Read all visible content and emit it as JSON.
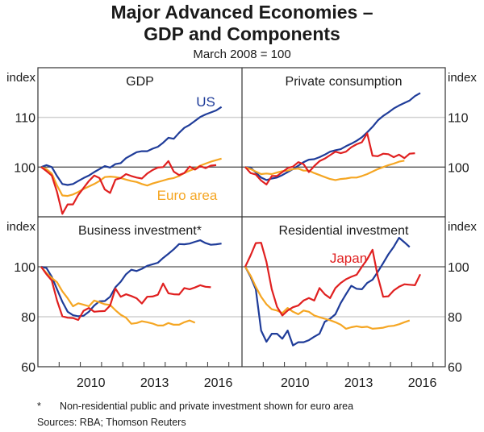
{
  "title_line1": "Major Advanced Economies –",
  "title_line2": "GDP and Components",
  "subtitle": "March 2008 = 100",
  "footnote_marker": "*",
  "footnote_text": "Non-residential public and private investment shown for euro area",
  "sources": "Sources:  RBA; Thomson Reuters",
  "colors": {
    "us": "#1f3c99",
    "euro": "#f5a623",
    "japan": "#e02020",
    "grid": "#d0d0d0",
    "axis": "#333333"
  },
  "chart_data": [
    {
      "type": "line",
      "title": "GDP",
      "ylabel": "index",
      "ylim": [
        90,
        120
      ],
      "yticks": [
        110,
        100
      ],
      "x_start": "2008Q1",
      "x_step": "quarter",
      "xticks": [
        "2010",
        "2013",
        "2016"
      ],
      "annotations": [
        {
          "text": "US",
          "series": "US"
        },
        {
          "text": "Euro area",
          "series": "Euro area"
        }
      ],
      "series": [
        {
          "name": "US",
          "color_key": "us",
          "values": [
            100,
            100.4,
            100.0,
            98.2,
            96.6,
            96.4,
            96.6,
            97.2,
            97.8,
            98.3,
            99.0,
            99.6,
            100.2,
            99.9,
            100.6,
            100.8,
            101.8,
            102.4,
            103.0,
            103.2,
            103.2,
            103.7,
            104.1,
            104.9,
            105.9,
            105.7,
            106.9,
            107.9,
            108.5,
            109.3,
            110.1,
            110.6,
            111.0,
            111.4,
            112.1
          ]
        },
        {
          "name": "Euro area",
          "color_key": "euro",
          "values": [
            100,
            99.6,
            98.7,
            96.3,
            94.3,
            94.2,
            94.5,
            95.0,
            95.6,
            96.1,
            96.6,
            97.2,
            98.0,
            98.1,
            98.0,
            97.8,
            97.5,
            97.2,
            97.0,
            96.6,
            96.3,
            96.7,
            97.0,
            97.3,
            97.6,
            97.8,
            98.2,
            98.8,
            99.3,
            99.7,
            100.3,
            100.7,
            101.1,
            101.4,
            101.7
          ]
        },
        {
          "name": "Japan",
          "color_key": "japan",
          "values": [
            100,
            99.2,
            98.3,
            95.0,
            90.6,
            92.5,
            92.5,
            94.4,
            95.8,
            97.2,
            98.3,
            97.8,
            95.5,
            94.8,
            97.5,
            97.8,
            98.6,
            98.2,
            97.9,
            97.7,
            98.7,
            99.4,
            99.9,
            100.0,
            101.2,
            99.1,
            98.4,
            98.8,
            100.1,
            99.5,
            100.2,
            99.8,
            100.3,
            100.4
          ]
        }
      ]
    },
    {
      "type": "line",
      "title": "Private consumption",
      "ylabel": "index",
      "ylim": [
        90,
        120
      ],
      "yticks": [
        110,
        100
      ],
      "x_start": "2008Q1",
      "x_step": "quarter",
      "xticks": [
        "2010",
        "2013",
        "2016"
      ],
      "series": [
        {
          "name": "US",
          "color_key": "us",
          "values": [
            100,
            99.9,
            98.9,
            97.9,
            97.4,
            97.7,
            97.9,
            98.4,
            99.0,
            99.6,
            100.3,
            101.0,
            101.5,
            101.6,
            102.0,
            102.5,
            103.1,
            103.4,
            103.6,
            104.2,
            104.7,
            105.3,
            106.0,
            107.0,
            108.1,
            109.4,
            110.3,
            111.0,
            111.8,
            112.4,
            112.9,
            113.4,
            114.3,
            114.9
          ]
        },
        {
          "name": "Euro area",
          "color_key": "euro",
          "values": [
            100,
            99.6,
            99.1,
            98.6,
            98.7,
            98.6,
            98.9,
            99.2,
            99.3,
            99.6,
            99.7,
            99.3,
            99.3,
            98.8,
            98.4,
            98.0,
            97.6,
            97.4,
            97.6,
            97.7,
            97.9,
            97.9,
            98.2,
            98.6,
            99.1,
            99.6,
            100.0,
            100.4,
            100.7,
            101.1,
            101.3
          ]
        },
        {
          "name": "Japan",
          "color_key": "japan",
          "values": [
            100,
            98.8,
            98.5,
            97.3,
            96.5,
            98.2,
            98.2,
            99.0,
            99.8,
            100.1,
            101.0,
            100.6,
            99.0,
            100.2,
            101.2,
            101.7,
            102.4,
            103.1,
            102.8,
            103.1,
            104.0,
            104.6,
            105.0,
            106.8,
            102.3,
            102.2,
            102.7,
            102.6,
            102.0,
            102.5,
            101.8,
            102.7,
            102.8
          ]
        }
      ]
    },
    {
      "type": "line",
      "title": "Business investment*",
      "ylabel": "index",
      "ylim": [
        60,
        120
      ],
      "yticks": [
        100,
        80,
        60
      ],
      "x_start": "2008Q1",
      "x_step": "quarter",
      "xticks": [
        "2010",
        "2013",
        "2016"
      ],
      "series": [
        {
          "name": "US",
          "color_key": "us",
          "values": [
            100,
            99.5,
            96,
            91,
            86,
            82,
            80.6,
            80.2,
            80.4,
            82,
            84.5,
            86.2,
            86.3,
            88,
            91.8,
            94,
            97,
            98.8,
            98.3,
            99.2,
            100.4,
            101.0,
            101.6,
            103.5,
            105.2,
            107,
            109.1,
            109,
            109.3,
            110.0,
            110.6,
            109.5,
            108.8,
            109.0,
            109.3
          ]
        },
        {
          "name": "Euro area",
          "color_key": "euro",
          "values": [
            100,
            97.5,
            95.5,
            93.8,
            90.2,
            87.4,
            84.2,
            85.4,
            84.8,
            84.2,
            86.5,
            85.8,
            85.0,
            84.7,
            82.6,
            80.8,
            79.6,
            77.2,
            77.5,
            78.2,
            77.8,
            77.3,
            76.5,
            76.5,
            77.5,
            76.8,
            76.8,
            77.8,
            78.5,
            77.6
          ]
        },
        {
          "name": "Japan",
          "color_key": "japan",
          "values": [
            100,
            97,
            94.5,
            86.5,
            80.2,
            79.6,
            79.5,
            78.7,
            82.4,
            83.5,
            82.0,
            82.2,
            82.3,
            84.5,
            91.3,
            88.0,
            89.0,
            88.3,
            87.4,
            85.3,
            88.0,
            88.1,
            88.8,
            93.3,
            89.4,
            89.0,
            88.9,
            91.5,
            91.0,
            91.7,
            92.6,
            92.0,
            91.8
          ]
        }
      ]
    },
    {
      "type": "line",
      "title": "Residential investment",
      "ylabel": "index",
      "ylim": [
        60,
        120
      ],
      "yticks": [
        100,
        80,
        60
      ],
      "x_start": "2008Q1",
      "x_step": "quarter",
      "xticks": [
        "2010",
        "2013",
        "2016"
      ],
      "annotations": [
        {
          "text": "Japan",
          "series": "Japan"
        }
      ],
      "series": [
        {
          "name": "US",
          "color_key": "us",
          "values": [
            100,
            96,
            91,
            74.5,
            70,
            73.2,
            73.2,
            71.2,
            74.5,
            68.5,
            69.8,
            69.8,
            70.6,
            72,
            73.2,
            78,
            79.2,
            81,
            85.5,
            89,
            92.4,
            91.2,
            91,
            93.5,
            94.8,
            98,
            101.5,
            105,
            108,
            111.6,
            109.8,
            107.9
          ]
        },
        {
          "name": "Euro area",
          "color_key": "euro",
          "values": [
            100,
            96.5,
            92,
            88,
            85,
            83,
            82.5,
            81.5,
            83.5,
            82,
            81,
            82.5,
            82,
            80.5,
            79.8,
            79.2,
            78.6,
            77.8,
            76.8,
            75.2,
            75.8,
            76.2,
            75.8,
            76,
            75.2,
            75.4,
            75.6,
            76.2,
            76.4,
            77,
            77.8,
            78.5
          ]
        },
        {
          "name": "Japan",
          "color_key": "japan",
          "values": [
            100,
            104.5,
            109.5,
            109.6,
            102,
            91,
            84,
            80.5,
            82.5,
            83.8,
            84.5,
            86.5,
            87.5,
            86.5,
            91.5,
            89,
            87.5,
            91.5,
            93.5,
            95,
            96,
            96.8,
            100,
            103,
            106.8,
            96,
            88,
            88.2,
            90.5,
            92,
            93,
            92.8,
            92.6,
            97
          ]
        }
      ]
    }
  ]
}
